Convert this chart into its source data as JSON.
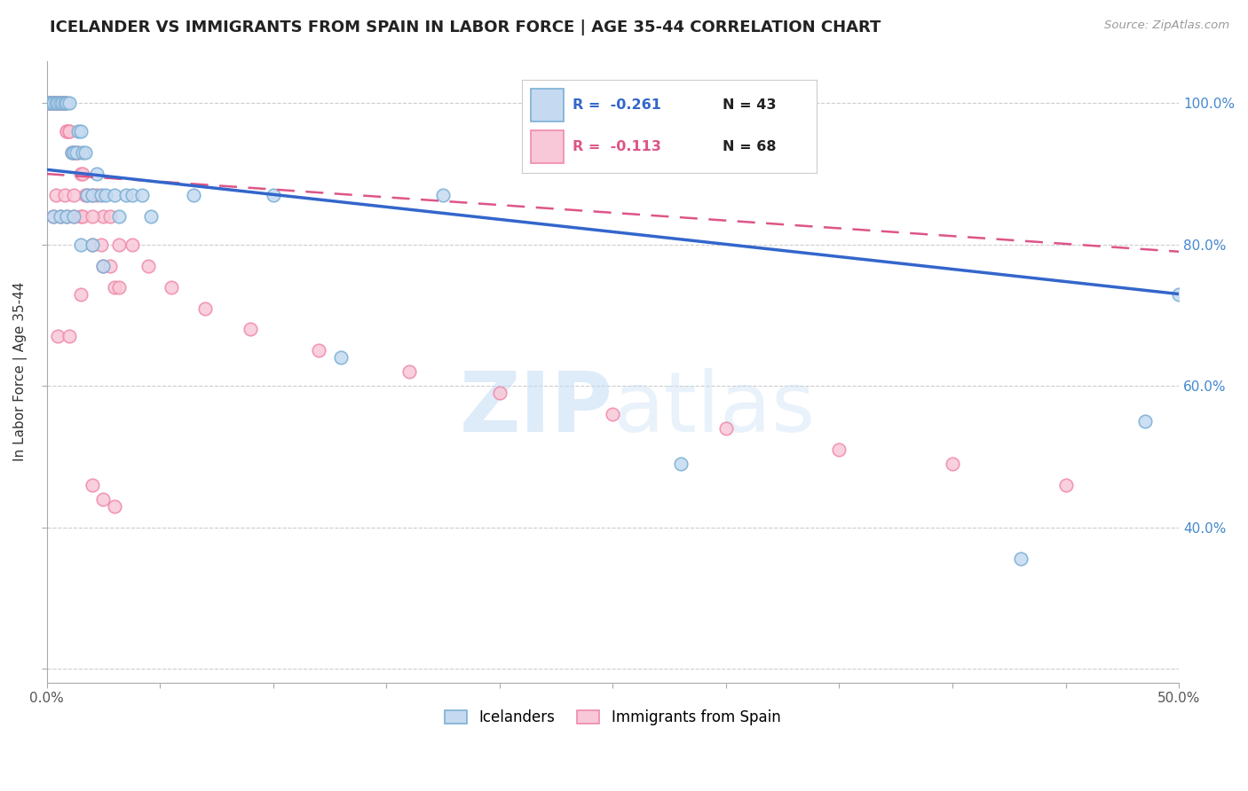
{
  "title": "ICELANDER VS IMMIGRANTS FROM SPAIN IN LABOR FORCE | AGE 35-44 CORRELATION CHART",
  "source": "Source: ZipAtlas.com",
  "ylabel": "In Labor Force | Age 35-44",
  "xlim": [
    0.0,
    0.5
  ],
  "ylim": [
    0.18,
    1.06
  ],
  "blue_color": "#7bafd4",
  "pink_color": "#f08aaa",
  "blue_fill": "#c5daf0",
  "pink_fill": "#f9c8d8",
  "trend_blue": "#3366cc",
  "trend_pink": "#dd5588",
  "right_tick_color": "#4488cc",
  "watermark_color": "#ddeeff",
  "legend_r1": "R = -0.261",
  "legend_n1": "N = 43",
  "legend_r2": "R = -0.113",
  "legend_n2": "N = 68",
  "icelanders_x": [
    0.001,
    0.002,
    0.003,
    0.004,
    0.005,
    0.006,
    0.007,
    0.008,
    0.009,
    0.01,
    0.011,
    0.012,
    0.013,
    0.014,
    0.015,
    0.016,
    0.017,
    0.018,
    0.02,
    0.022,
    0.024,
    0.026,
    0.03,
    0.032,
    0.035,
    0.038,
    0.042,
    0.046,
    0.065,
    0.1,
    0.13,
    0.175,
    0.28,
    0.43,
    0.485,
    0.5,
    0.003,
    0.006,
    0.009,
    0.012,
    0.015,
    0.02,
    0.025
  ],
  "icelanders_y": [
    1.0,
    1.0,
    1.0,
    1.0,
    1.0,
    1.0,
    1.0,
    1.0,
    1.0,
    1.0,
    0.93,
    0.93,
    0.93,
    0.96,
    0.96,
    0.93,
    0.93,
    0.87,
    0.87,
    0.9,
    0.87,
    0.87,
    0.87,
    0.84,
    0.87,
    0.87,
    0.87,
    0.84,
    0.87,
    0.87,
    0.64,
    0.87,
    0.49,
    0.355,
    0.55,
    0.73,
    0.84,
    0.84,
    0.84,
    0.84,
    0.8,
    0.8,
    0.77
  ],
  "spain_x": [
    0.001,
    0.001,
    0.002,
    0.002,
    0.003,
    0.003,
    0.004,
    0.004,
    0.005,
    0.005,
    0.006,
    0.006,
    0.007,
    0.007,
    0.008,
    0.008,
    0.009,
    0.009,
    0.01,
    0.01,
    0.011,
    0.012,
    0.013,
    0.014,
    0.015,
    0.016,
    0.017,
    0.018,
    0.02,
    0.022,
    0.025,
    0.028,
    0.032,
    0.038,
    0.045,
    0.055,
    0.07,
    0.09,
    0.12,
    0.16,
    0.2,
    0.25,
    0.3,
    0.35,
    0.4,
    0.45,
    0.003,
    0.006,
    0.009,
    0.012,
    0.015,
    0.02,
    0.025,
    0.03,
    0.004,
    0.008,
    0.012,
    0.016,
    0.02,
    0.024,
    0.028,
    0.032,
    0.005,
    0.01,
    0.015,
    0.02,
    0.025,
    0.03
  ],
  "spain_y": [
    1.0,
    1.0,
    1.0,
    1.0,
    1.0,
    1.0,
    1.0,
    1.0,
    1.0,
    1.0,
    1.0,
    1.0,
    1.0,
    1.0,
    1.0,
    1.0,
    0.96,
    0.96,
    0.96,
    0.96,
    0.93,
    0.93,
    0.93,
    0.93,
    0.9,
    0.9,
    0.87,
    0.87,
    0.87,
    0.87,
    0.84,
    0.84,
    0.8,
    0.8,
    0.77,
    0.74,
    0.71,
    0.68,
    0.65,
    0.62,
    0.59,
    0.56,
    0.54,
    0.51,
    0.49,
    0.46,
    0.84,
    0.84,
    0.84,
    0.84,
    0.84,
    0.8,
    0.77,
    0.74,
    0.87,
    0.87,
    0.87,
    0.84,
    0.84,
    0.8,
    0.77,
    0.74,
    0.67,
    0.67,
    0.73,
    0.46,
    0.44,
    0.43
  ]
}
